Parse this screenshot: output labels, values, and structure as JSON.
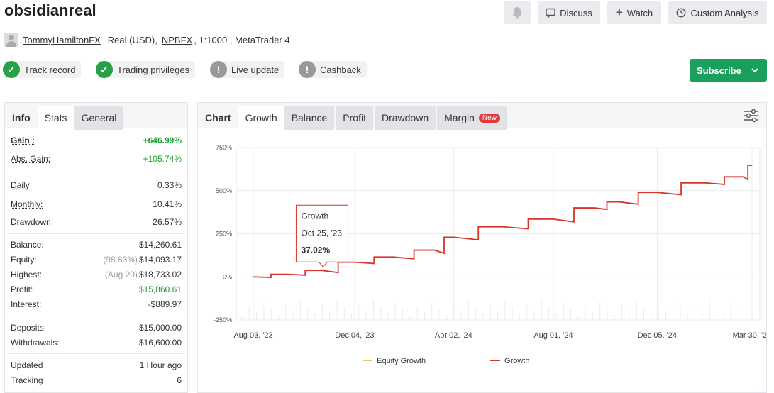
{
  "header": {
    "title": "obsidianreal",
    "discuss": "Discuss",
    "watch": "Watch",
    "custom_analysis": "Custom Analysis"
  },
  "account": {
    "user": "TommyHamiltonFX",
    "type": "Real (USD),",
    "broker": "NPBFX",
    "leverage": ", 1:1000 , MetaTrader 4"
  },
  "badges": [
    {
      "label": "Track record",
      "status": "ok"
    },
    {
      "label": "Trading privileges",
      "status": "ok"
    },
    {
      "label": "Live update",
      "status": "warn"
    },
    {
      "label": "Cashback",
      "status": "warn"
    }
  ],
  "subscribe": "Subscribe",
  "left_tabs": {
    "info": "Info",
    "stats": "Stats",
    "general": "General"
  },
  "stats": {
    "gain": {
      "k": "Gain :",
      "v": "+646.99%"
    },
    "abs_gain": {
      "k": "Abs. Gain:",
      "v": "+105.74%"
    },
    "daily": {
      "k": "Daily",
      "v": "0.33%"
    },
    "monthly": {
      "k": "Monthly:",
      "v": "10.41%"
    },
    "drawdown": {
      "k": "Drawdown:",
      "v": "26.57%"
    },
    "balance": {
      "k": "Balance:",
      "v": "$14,260.61"
    },
    "equity": {
      "k": "Equity:",
      "note": "(98.83%)",
      "v": "$14,093.17"
    },
    "highest": {
      "k": "Highest:",
      "note": "(Aug 20)",
      "v": "$18,733.02"
    },
    "profit": {
      "k": "Profit:",
      "v": "$15,860.61"
    },
    "interest": {
      "k": "Interest:",
      "v": "-$889.97"
    },
    "deposits": {
      "k": "Deposits:",
      "v": "$15,000.00"
    },
    "withdrawals": {
      "k": "Withdrawals:",
      "v": "$16,600.00"
    },
    "updated": {
      "k": "Updated",
      "v": "1 Hour ago"
    },
    "tracking": {
      "k": "Tracking",
      "v": "6"
    }
  },
  "chart_tabs": {
    "chart": "Chart",
    "growth": "Growth",
    "balance": "Balance",
    "profit": "Profit",
    "drawdown": "Drawdown",
    "margin": "Margin",
    "new": "New"
  },
  "tooltip": {
    "series": "Growth",
    "date": "Oct 25, '23",
    "value": "37.02%"
  },
  "colors": {
    "growth": "#d9342b",
    "equity": "#f2c744",
    "accent": "#1a9f5c"
  },
  "chart_data": {
    "type": "line",
    "ylim": [
      -250,
      750
    ],
    "yticks": [
      "750%",
      "500%",
      "250%",
      "0%",
      "-250%"
    ],
    "xticks": [
      "Aug 03, '23",
      "Dec 04, '23",
      "Apr 02, '24",
      "Aug 01, '24",
      "Dec 05, '24",
      "Mar 30, '25"
    ],
    "series": [
      {
        "name": "Equity Growth",
        "color": "#f2c744"
      },
      {
        "name": "Growth",
        "color": "#d9342b",
        "x": [
          "Aug 03, '23",
          "Sep 15, '23",
          "Oct 25, '23",
          "Dec 04, '23",
          "Jan 20, '24",
          "Mar 10, '24",
          "Apr 02, '24",
          "Jun 01, '24",
          "Aug 01, '24",
          "Sep 20, '24",
          "Oct 20, '24",
          "Dec 05, '24",
          "Feb 01, '25",
          "Mar 20, '25",
          "Mar 30, '25"
        ],
        "values": [
          0,
          15,
          37,
          85,
          115,
          155,
          230,
          290,
          335,
          400,
          435,
          490,
          545,
          580,
          647
        ]
      }
    ]
  }
}
